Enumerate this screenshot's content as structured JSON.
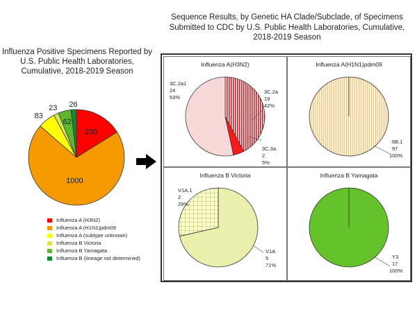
{
  "left_chart_title": "Influenza Positive Specimens Reported by U.S. Public Health Laboratories, Cumulative, 2018-2019 Season",
  "right_title": "Sequence Results, by Genetic HA Clade/Subclade, of Specimens Submitted to CDC by U.S. Public Health Laboratories, Cumulative, 2018-2019 Season",
  "colors": {
    "h3n2": "#ff0000",
    "h1n1": "#f59a00",
    "a_unknown": "#ffff00",
    "b_victoria": "#d9e84d",
    "b_yamagata": "#5cb82e",
    "b_lineage_nd": "#108a32",
    "panel_h3n2_light": "#ffd9d9",
    "panel_h1n1_bg": "#fdf2d5",
    "panel_h1n1_stripe": "#f2b66a",
    "panel_vic_main": "#e9f0ab",
    "panel_yam": "#64c22a"
  },
  "arrow_icon": "right-arrow",
  "chart_data": [
    {
      "type": "pie",
      "title": "Influenza Positive Specimens Reported by U.S. Public Health Laboratories, Cumulative, 2018-2019 Season",
      "slices": [
        {
          "label": "Influenza A (H3N2)",
          "value": 230,
          "color": "#ff0000"
        },
        {
          "label": "Influenza A (H1N1)pdm09",
          "value": 1000,
          "color": "#f59a00"
        },
        {
          "label": "Influenza A (subtype unknown)",
          "value": 83,
          "color": "#ffff00"
        },
        {
          "label": "Influenza B Victoria",
          "value": 23,
          "color": "#d9e84d"
        },
        {
          "label": "Influenza B Yamagata",
          "value": 62,
          "color": "#5cb82e"
        },
        {
          "label": "Influenza B (lineage not determined)",
          "value": 26,
          "color": "#108a32"
        }
      ],
      "legend": "bottom"
    },
    {
      "type": "pie",
      "title": "Influenza A(H3N2)",
      "slices": [
        {
          "label": "3C.2a",
          "value": 19,
          "percent": "42%"
        },
        {
          "label": "3C.3a",
          "value": 2,
          "percent": "5%"
        },
        {
          "label": "3C.2a1",
          "value": 24,
          "percent": "53%"
        }
      ]
    },
    {
      "type": "pie",
      "title": "Influenza A(H1N1)pdm09",
      "slices": [
        {
          "label": "6B.1",
          "value": 97,
          "percent": "100%"
        }
      ]
    },
    {
      "type": "pie",
      "title": "Influenza B Victoria",
      "slices": [
        {
          "label": "V1A",
          "value": 5,
          "percent": "71%"
        },
        {
          "label": "V1A.1",
          "value": 2,
          "percent": "29%"
        }
      ]
    },
    {
      "type": "pie",
      "title": "Influenza B Yamagata",
      "slices": [
        {
          "label": "Y3",
          "value": 17,
          "percent": "100%"
        }
      ]
    }
  ],
  "legend": [
    {
      "label": "Influenza A (H3N2)",
      "color": "#ff0000"
    },
    {
      "label": "Influenza A (H1N1)pdm09",
      "color": "#f59a00"
    },
    {
      "label": "Influenza A (subtype unknown)",
      "color": "#ffff00"
    },
    {
      "label": "Influenza B Victoria",
      "color": "#d9e84d"
    },
    {
      "label": "Influenza B Yamagata",
      "color": "#5cb82e"
    },
    {
      "label": "Influenza B (lineage not determined)",
      "color": "#108a32"
    }
  ],
  "panels": {
    "h3n2": {
      "title": "Influenza A(H3N2)",
      "labels": [
        {
          "name": "3C.2a1",
          "count": "24",
          "pct": "53%"
        },
        {
          "name": "3C.2a",
          "count": "19",
          "pct": "42%"
        },
        {
          "name": "3C.3a",
          "count": "2",
          "pct": "5%"
        }
      ]
    },
    "h1n1": {
      "title": "Influenza A(H1N1)pdm09",
      "labels": [
        {
          "name": "6B.1",
          "count": "97",
          "pct": "100%"
        }
      ]
    },
    "victoria": {
      "title": "Influenza B Victoria",
      "labels": [
        {
          "name": "V1A.1",
          "count": "2",
          "pct": "29%"
        },
        {
          "name": "V1A",
          "count": "5",
          "pct": "71%"
        }
      ]
    },
    "yamagata": {
      "title": "Influenza B Yamagata",
      "labels": [
        {
          "name": "Y3",
          "count": "17",
          "pct": "100%"
        }
      ]
    }
  }
}
